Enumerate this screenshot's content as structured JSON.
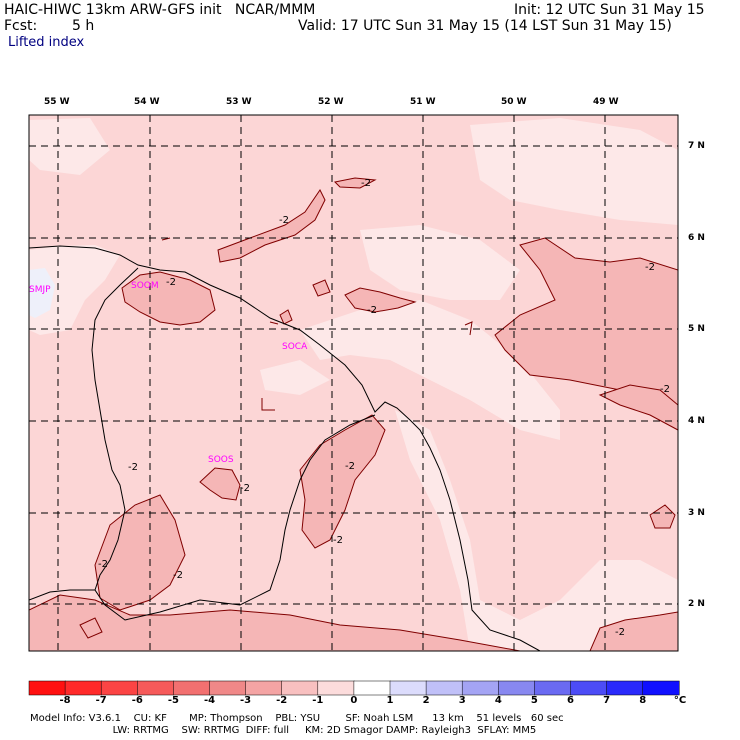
{
  "header": {
    "model_line": "HAIC-HIWC 13km ARW-GFS init   NCAR/MMM",
    "fcst_label": "Fcst:",
    "fcst_value": "5 h",
    "field_name": "Lifted index",
    "init_line": "Init: 12 UTC Sun 31 May 15",
    "valid_line": "Valid: 17 UTC Sun 31 May 15 (14 LST Sun 31 May 15)"
  },
  "map": {
    "lon_labels": [
      "55 W",
      "54 W",
      "53 W",
      "52 W",
      "51 W",
      "50 W",
      "49 W"
    ],
    "lat_labels": [
      "7 N",
      "6 N",
      "5 N",
      "4 N",
      "3 N",
      "2 N"
    ],
    "stations": [
      {
        "id": "SMJP",
        "name": "smjp-station-label"
      },
      {
        "id": "SOCA",
        "name": "soca-station-label"
      },
      {
        "id": "SOOM",
        "name": "soom-station-label"
      },
      {
        "id": "SOOS",
        "name": "soos-station-label"
      }
    ],
    "contour_label": "-2",
    "colors": {
      "base_pink": "#fcd6d6",
      "light_pink": "#fde8e8",
      "mid_pink": "#f5b6b6",
      "contour": "#800000",
      "coastline": "#000000",
      "station": "#ff00ff"
    }
  },
  "colorbar": {
    "labels": [
      "-8",
      "-7",
      "-6",
      "-5",
      "-4",
      "-3",
      "-2",
      "-1",
      "0",
      "1",
      "2",
      "3",
      "4",
      "5",
      "6",
      "7",
      "8"
    ],
    "unit": "°C",
    "colors": [
      "#ff1010",
      "#ff2a2a",
      "#fb4444",
      "#f65a5a",
      "#f27070",
      "#f08888",
      "#f4a4a4",
      "#f8c0c0",
      "#fcdcdc",
      "#ffffff",
      "#dcdcfc",
      "#c0c0f8",
      "#a4a4f4",
      "#8888f0",
      "#6a6af2",
      "#4c4cf6",
      "#2a2afb",
      "#1010ff"
    ]
  },
  "footer": {
    "line1": "Model Info: V3.6.1    CU: KF       MP: Thompson    PBL: YSU        SF: Noah LSM      13 km    51 levels   60 sec",
    "line2": "                          LW: RRTMG    SW: RRTMG  DIFF: full     KM: 2D Smagor DAMP: Rayleigh3  SFLAY: MM5"
  }
}
